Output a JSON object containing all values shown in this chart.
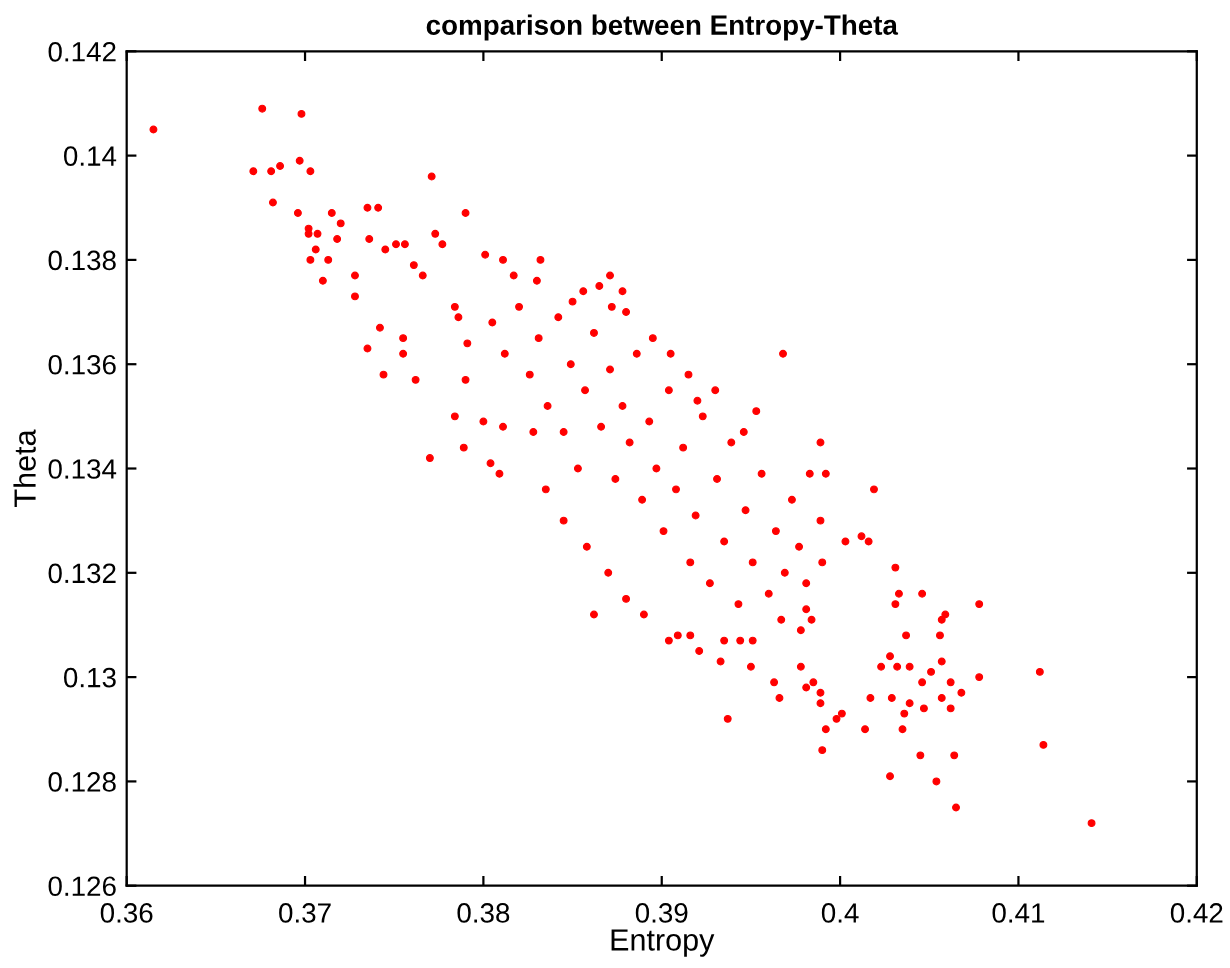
{
  "chart_data": {
    "type": "scatter",
    "title": "comparison between Entropy-Theta",
    "xlabel": "Entropy",
    "ylabel": "Theta",
    "xlim": [
      0.36,
      0.42
    ],
    "ylim": [
      0.126,
      0.142
    ],
    "xticks": [
      0.36,
      0.37,
      0.38,
      0.39,
      0.4,
      0.41,
      0.42
    ],
    "yticks": [
      0.126,
      0.128,
      0.13,
      0.132,
      0.134,
      0.136,
      0.138,
      0.14,
      0.142
    ],
    "series": [
      {
        "color": "#ff0000",
        "x": [
          0.3615,
          0.3676,
          0.3698,
          0.3671,
          0.3681,
          0.3686,
          0.3697,
          0.3703,
          0.3682,
          0.3696,
          0.3715,
          0.3702,
          0.3702,
          0.3707,
          0.372,
          0.3718,
          0.3706,
          0.3703,
          0.3713,
          0.371,
          0.3735,
          0.3741,
          0.3771,
          0.379,
          0.3728,
          0.3728,
          0.3735,
          0.3744,
          0.3742,
          0.3736,
          0.3745,
          0.3751,
          0.3756,
          0.3755,
          0.3755,
          0.3762,
          0.377,
          0.3789,
          0.3809,
          0.3804,
          0.3761,
          0.3766,
          0.3773,
          0.3777,
          0.3801,
          0.3811,
          0.3832,
          0.3817,
          0.383,
          0.3856,
          0.3871,
          0.3878,
          0.3784,
          0.3786,
          0.3791,
          0.379,
          0.3784,
          0.38,
          0.3811,
          0.3968,
          0.3953,
          0.3989,
          0.3983,
          0.3992,
          0.4019,
          0.3989,
          0.4003,
          0.4012,
          0.4016,
          0.4031,
          0.399,
          0.4046,
          0.4078,
          0.4033,
          0.4031,
          0.4059,
          0.4057,
          0.4037,
          0.4056,
          0.4057,
          0.4028,
          0.4023,
          0.4032,
          0.4039,
          0.4112,
          0.4078,
          0.4068,
          0.4062,
          0.4051,
          0.4046,
          0.4047,
          0.4057,
          0.4062,
          0.4029,
          0.4039,
          0.4036,
          0.4035,
          0.4017,
          0.4014,
          0.3998,
          0.4001,
          0.3992,
          0.399,
          0.3989,
          0.3989,
          0.3981,
          0.3985,
          0.3966,
          0.3963,
          0.395,
          0.3937,
          0.3933,
          0.3921,
          0.3904,
          0.4028,
          0.4045,
          0.4064,
          0.4054,
          0.4065,
          0.4114,
          0.4141,
          0.3978,
          0.3978,
          0.3981,
          0.3984,
          0.3967,
          0.3951,
          0.3935,
          0.3944,
          0.3916,
          0.3909,
          0.3805,
          0.3812,
          0.382,
          0.3826,
          0.3831,
          0.3836,
          0.3842,
          0.3845,
          0.3849,
          0.3853,
          0.3857,
          0.3862,
          0.3866,
          0.3871,
          0.3874,
          0.3878,
          0.3882,
          0.3886,
          0.3889,
          0.3893,
          0.3897,
          0.3901,
          0.3904,
          0.3908,
          0.3912,
          0.3916,
          0.3919,
          0.3923,
          0.3927,
          0.3931,
          0.3935,
          0.3939,
          0.3943,
          0.3947,
          0.3951,
          0.3956,
          0.396,
          0.3964,
          0.3969,
          0.3973,
          0.3977,
          0.3981,
          0.3828,
          0.3835,
          0.3845,
          0.3858,
          0.387,
          0.388,
          0.389,
          0.3862,
          0.385,
          0.3865,
          0.388,
          0.3895,
          0.3905,
          0.3915,
          0.393,
          0.392,
          0.3946,
          0.3872
        ],
        "values": [
          0.1405,
          0.1409,
          0.1408,
          0.1397,
          0.1397,
          0.1398,
          0.1399,
          0.1397,
          0.1391,
          0.1389,
          0.1389,
          0.1386,
          0.1385,
          0.1385,
          0.1387,
          0.1384,
          0.1382,
          0.138,
          0.138,
          0.1376,
          0.139,
          0.139,
          0.1396,
          0.1389,
          0.1377,
          0.1373,
          0.1363,
          0.1358,
          0.1367,
          0.1384,
          0.1382,
          0.1383,
          0.1383,
          0.1365,
          0.1362,
          0.1357,
          0.1342,
          0.1344,
          0.1339,
          0.1341,
          0.1379,
          0.1377,
          0.1385,
          0.1383,
          0.1381,
          0.138,
          0.138,
          0.1377,
          0.1376,
          0.1374,
          0.1377,
          0.1374,
          0.1371,
          0.1369,
          0.1364,
          0.1357,
          0.135,
          0.1349,
          0.1348,
          0.1362,
          0.1351,
          0.1345,
          0.1339,
          0.1339,
          0.1336,
          0.133,
          0.1326,
          0.1327,
          0.1326,
          0.1321,
          0.1322,
          0.1316,
          0.1314,
          0.1316,
          0.1314,
          0.1312,
          0.1311,
          0.1308,
          0.1308,
          0.1303,
          0.1304,
          0.1302,
          0.1302,
          0.1302,
          0.1301,
          0.13,
          0.1297,
          0.1299,
          0.1301,
          0.1299,
          0.1294,
          0.1296,
          0.1294,
          0.1296,
          0.1295,
          0.1293,
          0.129,
          0.1296,
          0.129,
          0.1292,
          0.1293,
          0.129,
          0.1286,
          0.1297,
          0.1295,
          0.1298,
          0.1299,
          0.1296,
          0.1299,
          0.1302,
          0.1292,
          0.1303,
          0.1305,
          0.1307,
          0.1281,
          0.1285,
          0.1285,
          0.128,
          0.1275,
          0.1287,
          0.1272,
          0.1302,
          0.1309,
          0.1313,
          0.1311,
          0.1311,
          0.1307,
          0.1307,
          0.1307,
          0.1308,
          0.1308,
          0.1368,
          0.1362,
          0.1371,
          0.1358,
          0.1365,
          0.1352,
          0.1369,
          0.1347,
          0.136,
          0.134,
          0.1355,
          0.1366,
          0.1348,
          0.1359,
          0.1338,
          0.1352,
          0.1345,
          0.1362,
          0.1334,
          0.1349,
          0.134,
          0.1328,
          0.1355,
          0.1336,
          0.1344,
          0.1322,
          0.1331,
          0.135,
          0.1318,
          0.1338,
          0.1326,
          0.1345,
          0.1314,
          0.1332,
          0.1322,
          0.1339,
          0.1316,
          0.1328,
          0.132,
          0.1334,
          0.1325,
          0.1318,
          0.1347,
          0.1336,
          0.133,
          0.1325,
          0.132,
          0.1315,
          0.1312,
          0.1312,
          0.1372,
          0.1375,
          0.137,
          0.1365,
          0.1362,
          0.1358,
          0.1355,
          0.1353,
          0.1347,
          0.1371
        ]
      }
    ]
  }
}
